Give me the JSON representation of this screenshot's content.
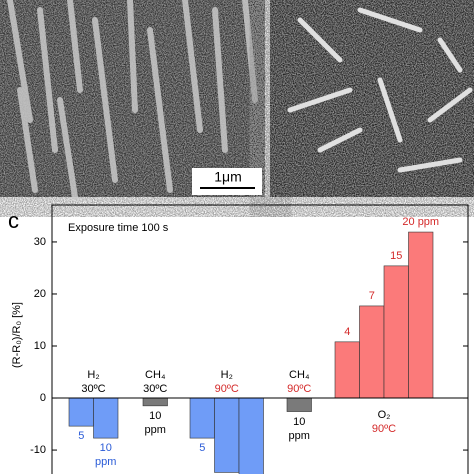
{
  "images": {
    "scale_bar": "1μm"
  },
  "chart_data": {
    "type": "bar",
    "panel_label": "c",
    "annotation": "Exposure time 100 s",
    "y_label": "(R-R₀)/R₀ [%]",
    "ylim": [
      -14.6,
      37.1
    ],
    "yticks": [
      -10,
      0,
      10,
      20,
      30
    ],
    "series": [
      {
        "name": "H₂",
        "condition": "30ºC",
        "name_color": "#000000",
        "condition_color": "#000000",
        "color": "#6f9cf7",
        "label_color": "#2a5bd7",
        "values": [
          -5.4,
          -7.7
        ],
        "labels": [
          "5",
          "10 ppm"
        ]
      },
      {
        "name": "CH₄",
        "condition": "30ºC",
        "name_color": "#000000",
        "condition_color": "#000000",
        "color": "#7a7a7a",
        "label_color": "#000000",
        "values": [
          -1.5
        ],
        "labels": [
          "10 ppm"
        ]
      },
      {
        "name": "H₂",
        "condition": "90ºC",
        "name_color": "#000000",
        "condition_color": "#d42a2a",
        "color": "#6f9cf7",
        "label_color": "#2a5bd7",
        "values": [
          -7.7,
          -14.3,
          -15
        ],
        "labels": [
          "5",
          null,
          null
        ]
      },
      {
        "name": "CH₄",
        "condition": "90ºC",
        "name_color": "#000000",
        "condition_color": "#d42a2a",
        "color": "#7a7a7a",
        "label_color": "#000000",
        "values": [
          -2.6
        ],
        "labels": [
          "10 ppm"
        ]
      },
      {
        "name": "O₂",
        "condition": "90ºC",
        "name_color": "#000000",
        "condition_color": "#d42a2a",
        "color": "#fb7a7a",
        "label_color": "#d42a2a",
        "values": [
          10.8,
          17.7,
          25.4,
          31.9
        ],
        "labels": [
          "4",
          "7",
          "15",
          "20 ppm"
        ]
      }
    ]
  }
}
